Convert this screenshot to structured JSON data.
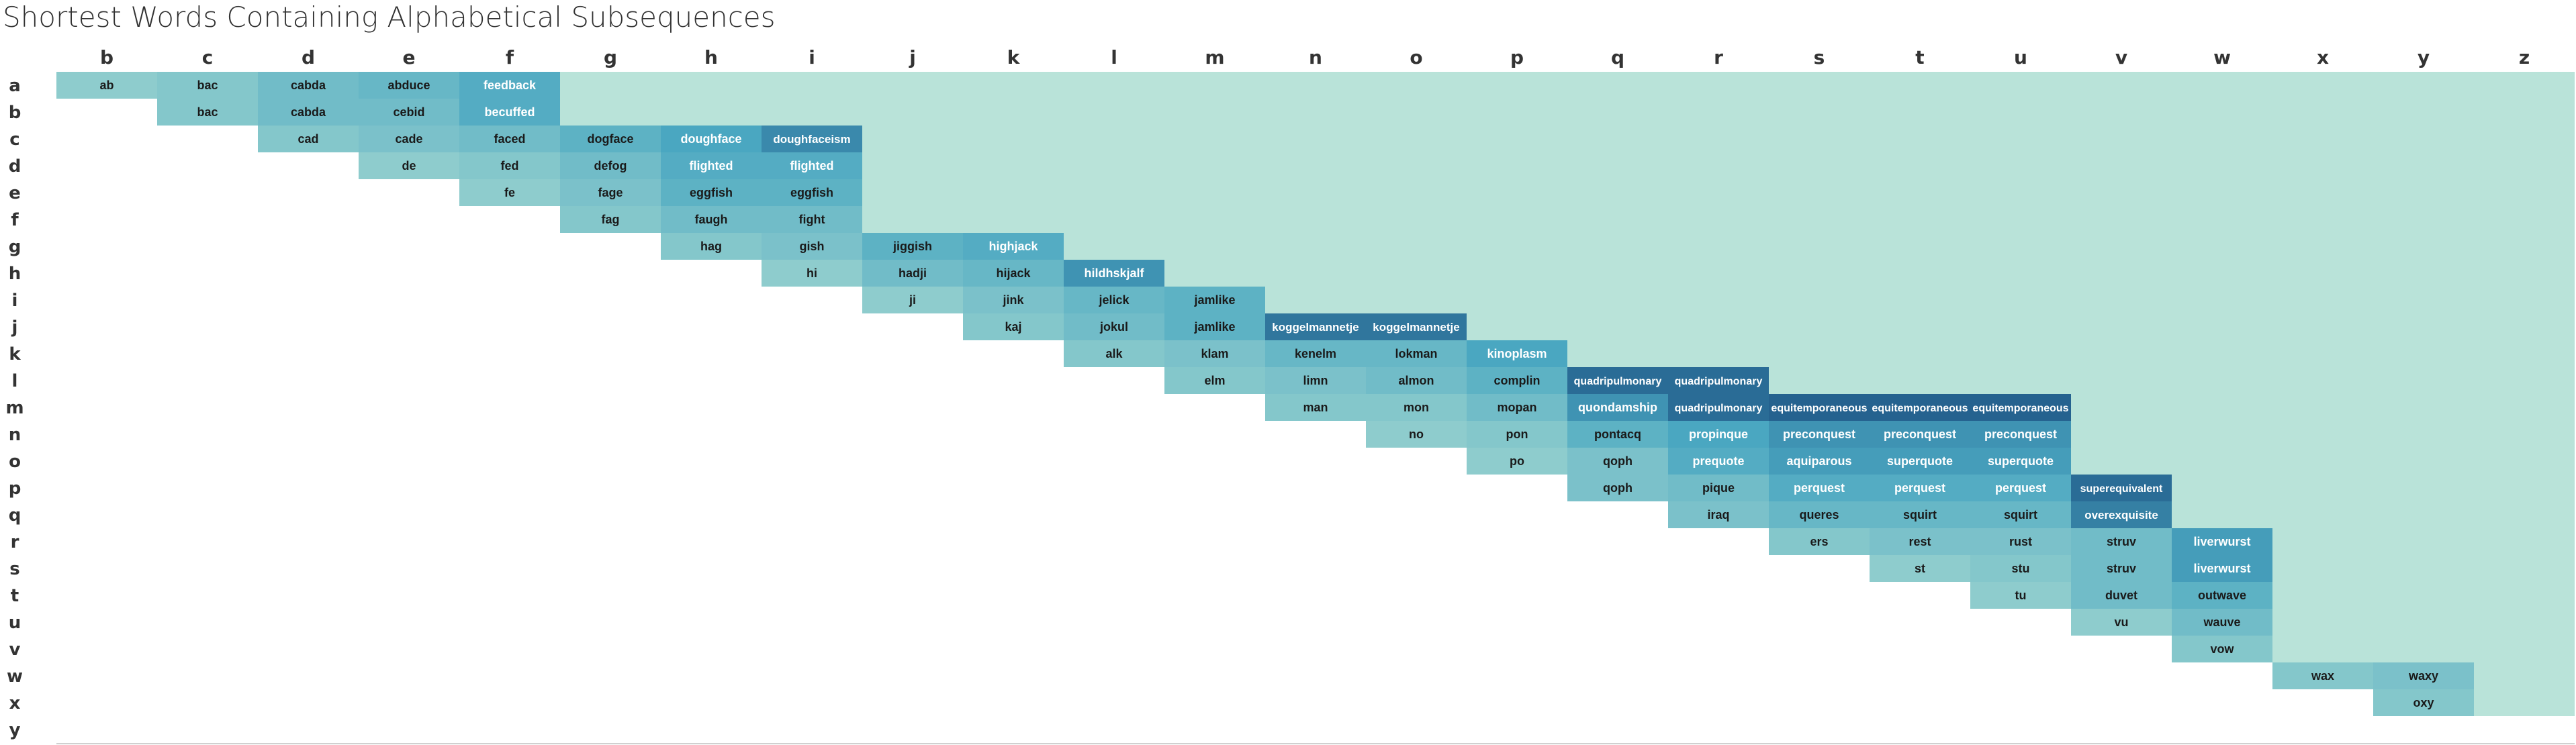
{
  "title": "Shortest Words Containing Alphabetical Subsequences",
  "chart_data": {
    "type": "heatmap",
    "title": "Shortest Words Containing Alphabetical Subsequences",
    "columns": [
      "b",
      "c",
      "d",
      "e",
      "f",
      "g",
      "h",
      "i",
      "j",
      "k",
      "l",
      "m",
      "n",
      "o",
      "p",
      "q",
      "r",
      "s",
      "t",
      "u",
      "v",
      "w",
      "x",
      "y",
      "z"
    ],
    "rows": [
      "a",
      "b",
      "c",
      "d",
      "e",
      "f",
      "g",
      "h",
      "i",
      "j",
      "k",
      "l",
      "m",
      "n",
      "o",
      "p",
      "q",
      "r",
      "s",
      "t",
      "u",
      "v",
      "w",
      "x",
      "y"
    ],
    "grid": false,
    "colors": {
      "upper_fill": "#b9e3d9",
      "scale": [
        "#8ecccd",
        "#4aa7c1",
        "#25628f"
      ]
    },
    "cells": [
      {
        "row": "a",
        "col": "b",
        "word": "ab"
      },
      {
        "row": "a",
        "col": "c",
        "word": "bac"
      },
      {
        "row": "a",
        "col": "d",
        "word": "cabda"
      },
      {
        "row": "a",
        "col": "e",
        "word": "abduce"
      },
      {
        "row": "a",
        "col": "f",
        "word": "feedback"
      },
      {
        "row": "b",
        "col": "c",
        "word": "bac"
      },
      {
        "row": "b",
        "col": "d",
        "word": "cabda"
      },
      {
        "row": "b",
        "col": "e",
        "word": "cebid"
      },
      {
        "row": "b",
        "col": "f",
        "word": "becuffed"
      },
      {
        "row": "c",
        "col": "d",
        "word": "cad"
      },
      {
        "row": "c",
        "col": "e",
        "word": "cade"
      },
      {
        "row": "c",
        "col": "f",
        "word": "faced"
      },
      {
        "row": "c",
        "col": "g",
        "word": "dogface"
      },
      {
        "row": "c",
        "col": "h",
        "word": "doughface"
      },
      {
        "row": "c",
        "col": "i",
        "word": "doughfaceism"
      },
      {
        "row": "d",
        "col": "e",
        "word": "de"
      },
      {
        "row": "d",
        "col": "f",
        "word": "fed"
      },
      {
        "row": "d",
        "col": "g",
        "word": "defog"
      },
      {
        "row": "d",
        "col": "h",
        "word": "flighted"
      },
      {
        "row": "d",
        "col": "i",
        "word": "flighted"
      },
      {
        "row": "e",
        "col": "f",
        "word": "fe"
      },
      {
        "row": "e",
        "col": "g",
        "word": "fage"
      },
      {
        "row": "e",
        "col": "h",
        "word": "eggfish"
      },
      {
        "row": "e",
        "col": "i",
        "word": "eggfish"
      },
      {
        "row": "f",
        "col": "g",
        "word": "fag"
      },
      {
        "row": "f",
        "col": "h",
        "word": "faugh"
      },
      {
        "row": "f",
        "col": "i",
        "word": "fight"
      },
      {
        "row": "g",
        "col": "h",
        "word": "hag"
      },
      {
        "row": "g",
        "col": "i",
        "word": "gish"
      },
      {
        "row": "g",
        "col": "j",
        "word": "jiggish"
      },
      {
        "row": "g",
        "col": "k",
        "word": "highjack"
      },
      {
        "row": "h",
        "col": "i",
        "word": "hi"
      },
      {
        "row": "h",
        "col": "j",
        "word": "hadji"
      },
      {
        "row": "h",
        "col": "k",
        "word": "hijack"
      },
      {
        "row": "h",
        "col": "l",
        "word": "hildhskjalf"
      },
      {
        "row": "i",
        "col": "j",
        "word": "ji"
      },
      {
        "row": "i",
        "col": "k",
        "word": "jink"
      },
      {
        "row": "i",
        "col": "l",
        "word": "jelick"
      },
      {
        "row": "i",
        "col": "m",
        "word": "jamlike"
      },
      {
        "row": "j",
        "col": "k",
        "word": "kaj"
      },
      {
        "row": "j",
        "col": "l",
        "word": "jokul"
      },
      {
        "row": "j",
        "col": "m",
        "word": "jamlike"
      },
      {
        "row": "j",
        "col": "n",
        "word": "koggelmannetje"
      },
      {
        "row": "j",
        "col": "o",
        "word": "koggelmannetje"
      },
      {
        "row": "k",
        "col": "l",
        "word": "alk"
      },
      {
        "row": "k",
        "col": "m",
        "word": "klam"
      },
      {
        "row": "k",
        "col": "n",
        "word": "kenelm"
      },
      {
        "row": "k",
        "col": "o",
        "word": "lokman"
      },
      {
        "row": "k",
        "col": "p",
        "word": "kinoplasm"
      },
      {
        "row": "l",
        "col": "m",
        "word": "elm"
      },
      {
        "row": "l",
        "col": "n",
        "word": "limn"
      },
      {
        "row": "l",
        "col": "o",
        "word": "almon"
      },
      {
        "row": "l",
        "col": "p",
        "word": "complin"
      },
      {
        "row": "l",
        "col": "q",
        "word": "quadripulmonary"
      },
      {
        "row": "l",
        "col": "r",
        "word": "quadripulmonary"
      },
      {
        "row": "m",
        "col": "n",
        "word": "man"
      },
      {
        "row": "m",
        "col": "o",
        "word": "mon"
      },
      {
        "row": "m",
        "col": "p",
        "word": "mopan"
      },
      {
        "row": "m",
        "col": "q",
        "word": "quondamship"
      },
      {
        "row": "m",
        "col": "r",
        "word": "quadripulmonary"
      },
      {
        "row": "m",
        "col": "s",
        "word": "equitemporaneous"
      },
      {
        "row": "m",
        "col": "t",
        "word": "equitemporaneous"
      },
      {
        "row": "m",
        "col": "u",
        "word": "equitemporaneous"
      },
      {
        "row": "n",
        "col": "o",
        "word": "no"
      },
      {
        "row": "n",
        "col": "p",
        "word": "pon"
      },
      {
        "row": "n",
        "col": "q",
        "word": "pontacq"
      },
      {
        "row": "n",
        "col": "r",
        "word": "propinque"
      },
      {
        "row": "n",
        "col": "s",
        "word": "preconquest"
      },
      {
        "row": "n",
        "col": "t",
        "word": "preconquest"
      },
      {
        "row": "n",
        "col": "u",
        "word": "preconquest"
      },
      {
        "row": "o",
        "col": "p",
        "word": "po"
      },
      {
        "row": "o",
        "col": "q",
        "word": "qoph"
      },
      {
        "row": "o",
        "col": "r",
        "word": "prequote"
      },
      {
        "row": "o",
        "col": "s",
        "word": "aquiparous"
      },
      {
        "row": "o",
        "col": "t",
        "word": "superquote"
      },
      {
        "row": "o",
        "col": "u",
        "word": "superquote"
      },
      {
        "row": "p",
        "col": "q",
        "word": "qoph"
      },
      {
        "row": "p",
        "col": "r",
        "word": "pique"
      },
      {
        "row": "p",
        "col": "s",
        "word": "perquest"
      },
      {
        "row": "p",
        "col": "t",
        "word": "perquest"
      },
      {
        "row": "p",
        "col": "u",
        "word": "perquest"
      },
      {
        "row": "p",
        "col": "v",
        "word": "superequivalent"
      },
      {
        "row": "q",
        "col": "r",
        "word": "iraq"
      },
      {
        "row": "q",
        "col": "s",
        "word": "queres"
      },
      {
        "row": "q",
        "col": "t",
        "word": "squirt"
      },
      {
        "row": "q",
        "col": "u",
        "word": "squirt"
      },
      {
        "row": "q",
        "col": "v",
        "word": "overexquisite"
      },
      {
        "row": "r",
        "col": "s",
        "word": "ers"
      },
      {
        "row": "r",
        "col": "t",
        "word": "rest"
      },
      {
        "row": "r",
        "col": "u",
        "word": "rust"
      },
      {
        "row": "r",
        "col": "v",
        "word": "struv"
      },
      {
        "row": "r",
        "col": "w",
        "word": "liverwurst"
      },
      {
        "row": "s",
        "col": "t",
        "word": "st"
      },
      {
        "row": "s",
        "col": "u",
        "word": "stu"
      },
      {
        "row": "s",
        "col": "v",
        "word": "struv"
      },
      {
        "row": "s",
        "col": "w",
        "word": "liverwurst"
      },
      {
        "row": "t",
        "col": "u",
        "word": "tu"
      },
      {
        "row": "t",
        "col": "v",
        "word": "duvet"
      },
      {
        "row": "t",
        "col": "w",
        "word": "outwave"
      },
      {
        "row": "u",
        "col": "v",
        "word": "vu"
      },
      {
        "row": "u",
        "col": "w",
        "word": "wauve"
      },
      {
        "row": "v",
        "col": "w",
        "word": "vow"
      },
      {
        "row": "w",
        "col": "x",
        "word": "wax"
      },
      {
        "row": "w",
        "col": "y",
        "word": "waxy"
      },
      {
        "row": "x",
        "col": "y",
        "word": "oxy"
      }
    ]
  }
}
